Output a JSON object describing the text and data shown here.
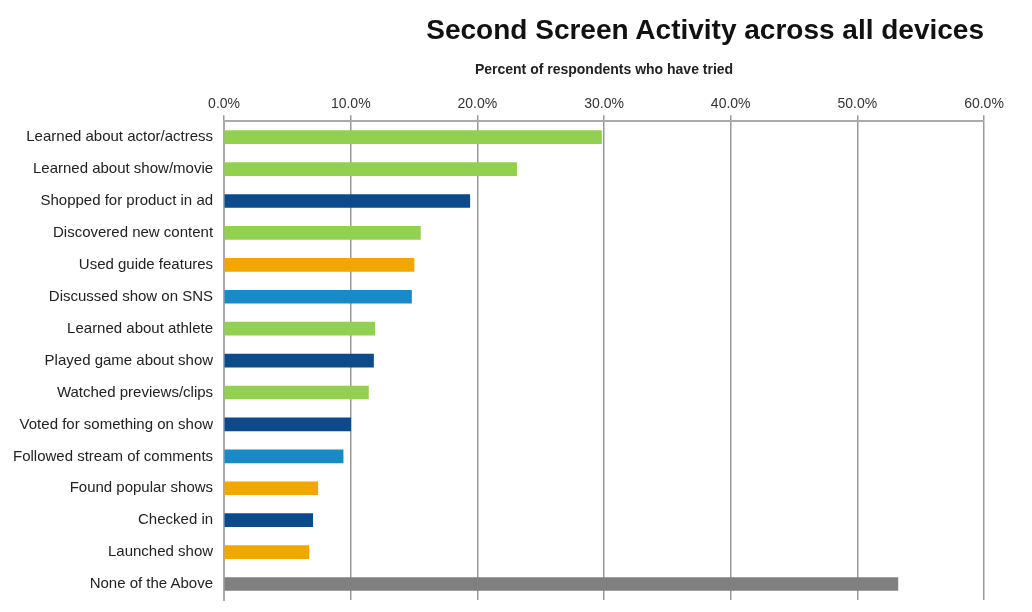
{
  "chart_data": {
    "type": "bar",
    "orientation": "horizontal",
    "title": "Second Screen Activity across all devices",
    "xlabel": "Percent of respondents who have tried",
    "categories": [
      "Learned about actor/actress",
      "Learned about show/movie",
      "Shopped for product in ad",
      "Discovered new content",
      "Used guide features",
      "Discussed show on SNS",
      "Learned about athlete",
      "Played game about show",
      "Watched previews/clips",
      "Voted for something on show",
      "Followed stream of comments",
      "Found popular shows",
      "Checked in",
      "Launched show",
      "None of the Above"
    ],
    "values": [
      29.8,
      23.1,
      19.4,
      15.5,
      15.0,
      14.8,
      11.9,
      11.8,
      11.4,
      10.0,
      9.4,
      7.4,
      7.0,
      6.7,
      53.2
    ],
    "colors": [
      "#92d050",
      "#92d050",
      "#0d4a8a",
      "#92d050",
      "#f0a800",
      "#1a8ac6",
      "#92d050",
      "#0d4a8a",
      "#92d050",
      "#0d4a8a",
      "#1a8ac6",
      "#f0a800",
      "#0d4a8a",
      "#f0a800",
      "#808080"
    ],
    "xlim": [
      0,
      60
    ],
    "xticks": [
      {
        "value": 0,
        "label": "0.0%"
      },
      {
        "value": 10,
        "label": "10.0%"
      },
      {
        "value": 20,
        "label": "20.0%"
      },
      {
        "value": 30,
        "label": "30.0%"
      },
      {
        "value": 40,
        "label": "40.0%"
      },
      {
        "value": 50,
        "label": "50.0%"
      },
      {
        "value": 60,
        "label": "60.0%"
      }
    ],
    "grid": "x"
  }
}
